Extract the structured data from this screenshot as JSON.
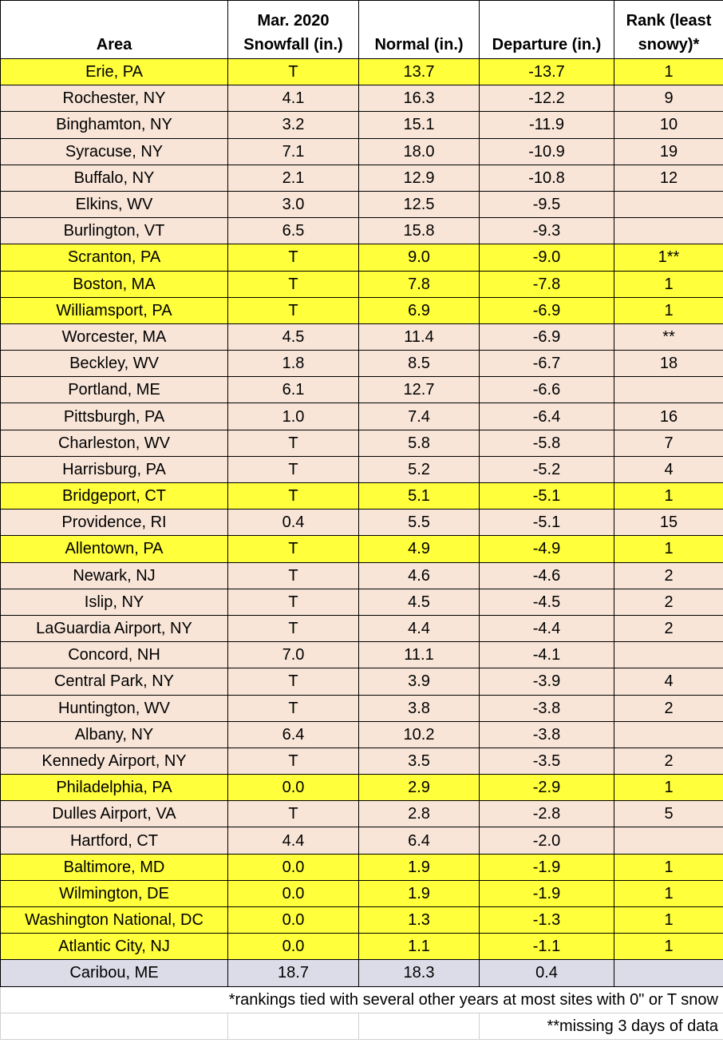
{
  "headers": {
    "area": "Area",
    "snowfall_line1": "Mar. 2020",
    "snowfall_line2": "Snowfall (in.)",
    "normal": "Normal (in.)",
    "departure": "Departure (in.)",
    "rank_line1": "Rank (least",
    "rank_line2": "snowy)*"
  },
  "colors": {
    "record_least_snowy": "#ffff3c",
    "below_normal": "#f8e5d8",
    "above_normal": "#dcdce9"
  },
  "rows": [
    {
      "area": "Erie, PA",
      "snowfall": "T",
      "normal": "13.7",
      "departure": "-13.7",
      "rank": "1",
      "color": "yellow"
    },
    {
      "area": "Rochester, NY",
      "snowfall": "4.1",
      "normal": "16.3",
      "departure": "-12.2",
      "rank": "9",
      "color": "peach"
    },
    {
      "area": "Binghamton, NY",
      "snowfall": "3.2",
      "normal": "15.1",
      "departure": "-11.9",
      "rank": "10",
      "color": "peach"
    },
    {
      "area": "Syracuse, NY",
      "snowfall": "7.1",
      "normal": "18.0",
      "departure": "-10.9",
      "rank": "19",
      "color": "peach"
    },
    {
      "area": "Buffalo, NY",
      "snowfall": "2.1",
      "normal": "12.9",
      "departure": "-10.8",
      "rank": "12",
      "color": "peach"
    },
    {
      "area": "Elkins, WV",
      "snowfall": "3.0",
      "normal": "12.5",
      "departure": "-9.5",
      "rank": "",
      "color": "peach"
    },
    {
      "area": "Burlington, VT",
      "snowfall": "6.5",
      "normal": "15.8",
      "departure": "-9.3",
      "rank": "",
      "color": "peach"
    },
    {
      "area": "Scranton, PA",
      "snowfall": "T",
      "normal": "9.0",
      "departure": "-9.0",
      "rank": "1**",
      "color": "yellow"
    },
    {
      "area": "Boston, MA",
      "snowfall": "T",
      "normal": "7.8",
      "departure": "-7.8",
      "rank": "1",
      "color": "yellow"
    },
    {
      "area": "Williamsport, PA",
      "snowfall": "T",
      "normal": "6.9",
      "departure": "-6.9",
      "rank": "1",
      "color": "yellow"
    },
    {
      "area": "Worcester, MA",
      "snowfall": "4.5",
      "normal": "11.4",
      "departure": "-6.9",
      "rank": "**",
      "color": "peach"
    },
    {
      "area": "Beckley, WV",
      "snowfall": "1.8",
      "normal": "8.5",
      "departure": "-6.7",
      "rank": "18",
      "color": "peach"
    },
    {
      "area": "Portland, ME",
      "snowfall": "6.1",
      "normal": "12.7",
      "departure": "-6.6",
      "rank": "",
      "color": "peach"
    },
    {
      "area": "Pittsburgh, PA",
      "snowfall": "1.0",
      "normal": "7.4",
      "departure": "-6.4",
      "rank": "16",
      "color": "peach"
    },
    {
      "area": "Charleston, WV",
      "snowfall": "T",
      "normal": "5.8",
      "departure": "-5.8",
      "rank": "7",
      "color": "peach"
    },
    {
      "area": "Harrisburg, PA",
      "snowfall": "T",
      "normal": "5.2",
      "departure": "-5.2",
      "rank": "4",
      "color": "peach"
    },
    {
      "area": "Bridgeport, CT",
      "snowfall": "T",
      "normal": "5.1",
      "departure": "-5.1",
      "rank": "1",
      "color": "yellow"
    },
    {
      "area": "Providence, RI",
      "snowfall": "0.4",
      "normal": "5.5",
      "departure": "-5.1",
      "rank": "15",
      "color": "peach"
    },
    {
      "area": "Allentown, PA",
      "snowfall": "T",
      "normal": "4.9",
      "departure": "-4.9",
      "rank": "1",
      "color": "yellow"
    },
    {
      "area": "Newark, NJ",
      "snowfall": "T",
      "normal": "4.6",
      "departure": "-4.6",
      "rank": "2",
      "color": "peach"
    },
    {
      "area": "Islip, NY",
      "snowfall": "T",
      "normal": "4.5",
      "departure": "-4.5",
      "rank": "2",
      "color": "peach"
    },
    {
      "area": "LaGuardia Airport, NY",
      "snowfall": "T",
      "normal": "4.4",
      "departure": "-4.4",
      "rank": "2",
      "color": "peach"
    },
    {
      "area": "Concord, NH",
      "snowfall": "7.0",
      "normal": "11.1",
      "departure": "-4.1",
      "rank": "",
      "color": "peach"
    },
    {
      "area": "Central Park, NY",
      "snowfall": "T",
      "normal": "3.9",
      "departure": "-3.9",
      "rank": "4",
      "color": "peach"
    },
    {
      "area": "Huntington, WV",
      "snowfall": "T",
      "normal": "3.8",
      "departure": "-3.8",
      "rank": "2",
      "color": "peach"
    },
    {
      "area": "Albany, NY",
      "snowfall": "6.4",
      "normal": "10.2",
      "departure": "-3.8",
      "rank": "",
      "color": "peach"
    },
    {
      "area": "Kennedy Airport, NY",
      "snowfall": "T",
      "normal": "3.5",
      "departure": "-3.5",
      "rank": "2",
      "color": "peach"
    },
    {
      "area": "Philadelphia, PA",
      "snowfall": "0.0",
      "normal": "2.9",
      "departure": "-2.9",
      "rank": "1",
      "color": "yellow"
    },
    {
      "area": "Dulles Airport, VA",
      "snowfall": "T",
      "normal": "2.8",
      "departure": "-2.8",
      "rank": "5",
      "color": "peach"
    },
    {
      "area": "Hartford, CT",
      "snowfall": "4.4",
      "normal": "6.4",
      "departure": "-2.0",
      "rank": "",
      "color": "peach"
    },
    {
      "area": "Baltimore, MD",
      "snowfall": "0.0",
      "normal": "1.9",
      "departure": "-1.9",
      "rank": "1",
      "color": "yellow"
    },
    {
      "area": "Wilmington, DE",
      "snowfall": "0.0",
      "normal": "1.9",
      "departure": "-1.9",
      "rank": "1",
      "color": "yellow"
    },
    {
      "area": "Washington National, DC",
      "snowfall": "0.0",
      "normal": "1.3",
      "departure": "-1.3",
      "rank": "1",
      "color": "yellow"
    },
    {
      "area": "Atlantic City, NJ",
      "snowfall": "0.0",
      "normal": "1.1",
      "departure": "-1.1",
      "rank": "1",
      "color": "yellow"
    },
    {
      "area": "Caribou, ME",
      "snowfall": "18.7",
      "normal": "18.3",
      "departure": "0.4",
      "rank": "",
      "color": "lavender"
    }
  ],
  "footnotes": {
    "ties": "*rankings tied with several other years at most sites with 0\" or T snow",
    "missing": "**missing 3 days of data"
  }
}
